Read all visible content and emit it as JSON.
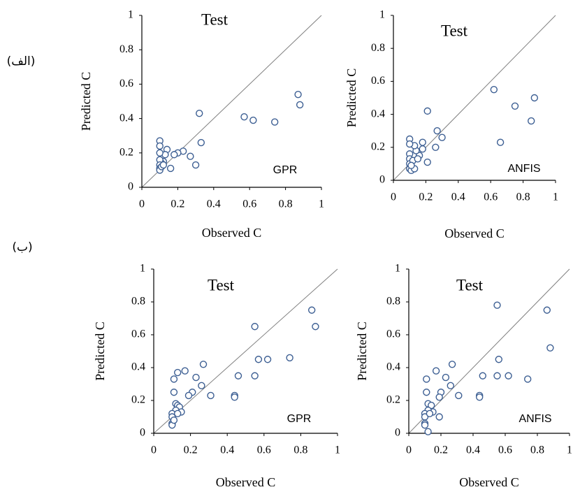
{
  "panel_labels": [
    "(الف)",
    "(ب)"
  ],
  "chart_data": [
    {
      "type": "scatter",
      "title": "Test",
      "annotation": "GPR",
      "xlabel": "Observed C",
      "ylabel": "Predicted C",
      "marker_edge_color": "#3d5f93",
      "marker_fill": "#ffffff",
      "xlim": [
        0,
        1
      ],
      "ylim": [
        0,
        1
      ],
      "xticks": [
        0,
        0.2,
        0.4,
        0.6,
        0.8,
        1
      ],
      "yticks": [
        0,
        0.2,
        0.4,
        0.6,
        0.8,
        1
      ],
      "x": [
        0.87,
        0.88,
        0.74,
        0.57,
        0.62,
        0.32,
        0.33,
        0.3,
        0.27,
        0.23,
        0.2,
        0.18,
        0.16,
        0.14,
        0.13,
        0.12,
        0.11,
        0.1,
        0.1,
        0.1,
        0.1,
        0.1,
        0.1,
        0.1,
        0.11,
        0.12
      ],
      "values": [
        0.54,
        0.48,
        0.38,
        0.41,
        0.39,
        0.43,
        0.26,
        0.13,
        0.18,
        0.21,
        0.2,
        0.19,
        0.11,
        0.22,
        0.19,
        0.15,
        0.14,
        0.27,
        0.24,
        0.2,
        0.16,
        0.13,
        0.11,
        0.1,
        0.12,
        0.13
      ]
    },
    {
      "type": "scatter",
      "title": "Test",
      "annotation": "ANFIS",
      "xlabel": "Observed C",
      "ylabel": "Predicted C",
      "marker_edge_color": "#3d5f93",
      "marker_fill": "#ffffff",
      "xlim": [
        0,
        1
      ],
      "ylim": [
        0,
        1
      ],
      "xticks": [
        0,
        0.2,
        0.4,
        0.6,
        0.8,
        1
      ],
      "yticks": [
        0,
        0.2,
        0.4,
        0.6,
        0.8,
        1
      ],
      "x": [
        0.62,
        0.87,
        0.75,
        0.85,
        0.66,
        0.21,
        0.27,
        0.3,
        0.26,
        0.21,
        0.18,
        0.18,
        0.16,
        0.14,
        0.13,
        0.1,
        0.1,
        0.1,
        0.1,
        0.1,
        0.1,
        0.11,
        0.13,
        0.12,
        0.15,
        0.11
      ],
      "values": [
        0.55,
        0.5,
        0.45,
        0.36,
        0.23,
        0.42,
        0.3,
        0.26,
        0.2,
        0.11,
        0.23,
        0.19,
        0.15,
        0.18,
        0.21,
        0.25,
        0.22,
        0.16,
        0.13,
        0.1,
        0.07,
        0.06,
        0.07,
        0.12,
        0.13,
        0.09
      ]
    },
    {
      "type": "scatter",
      "title": "Test",
      "annotation": "GPR",
      "xlabel": "Observed C",
      "ylabel": "Predicted C",
      "marker_edge_color": "#3d5f93",
      "marker_fill": "#ffffff",
      "xlim": [
        0,
        1
      ],
      "ylim": [
        0,
        1
      ],
      "xticks": [
        0,
        0.2,
        0.4,
        0.6,
        0.8,
        1
      ],
      "yticks": [
        0,
        0.2,
        0.4,
        0.6,
        0.8,
        1
      ],
      "x": [
        0.86,
        0.88,
        0.55,
        0.74,
        0.57,
        0.62,
        0.46,
        0.55,
        0.44,
        0.44,
        0.27,
        0.31,
        0.26,
        0.23,
        0.21,
        0.19,
        0.17,
        0.13,
        0.11,
        0.11,
        0.12,
        0.13,
        0.14,
        0.15,
        0.12,
        0.1,
        0.1,
        0.1,
        0.1,
        0.11,
        0.13
      ],
      "values": [
        0.75,
        0.65,
        0.65,
        0.46,
        0.45,
        0.45,
        0.35,
        0.35,
        0.23,
        0.22,
        0.42,
        0.23,
        0.29,
        0.34,
        0.25,
        0.23,
        0.38,
        0.37,
        0.33,
        0.25,
        0.18,
        0.17,
        0.16,
        0.13,
        0.14,
        0.12,
        0.1,
        0.06,
        0.05,
        0.08,
        0.12
      ]
    },
    {
      "type": "scatter",
      "title": "Test",
      "annotation": "ANFIS",
      "xlabel": "Observed C",
      "ylabel": "Predicted C",
      "marker_edge_color": "#3d5f93",
      "marker_fill": "#ffffff",
      "xlim": [
        0,
        1
      ],
      "ylim": [
        0,
        1
      ],
      "xticks": [
        0,
        0.2,
        0.4,
        0.6,
        0.8,
        1
      ],
      "yticks": [
        0,
        0.2,
        0.4,
        0.6,
        0.8,
        1
      ],
      "x": [
        0.55,
        0.86,
        0.88,
        0.56,
        0.46,
        0.55,
        0.62,
        0.74,
        0.44,
        0.44,
        0.31,
        0.27,
        0.26,
        0.23,
        0.2,
        0.19,
        0.19,
        0.17,
        0.11,
        0.11,
        0.12,
        0.14,
        0.15,
        0.12,
        0.1,
        0.1,
        0.1,
        0.1,
        0.12,
        0.13
      ],
      "values": [
        0.78,
        0.75,
        0.52,
        0.45,
        0.35,
        0.35,
        0.35,
        0.33,
        0.23,
        0.22,
        0.23,
        0.42,
        0.29,
        0.34,
        0.25,
        0.22,
        0.1,
        0.38,
        0.33,
        0.25,
        0.18,
        0.17,
        0.13,
        0.14,
        0.12,
        0.1,
        0.06,
        0.05,
        0.01,
        0.12
      ]
    }
  ]
}
